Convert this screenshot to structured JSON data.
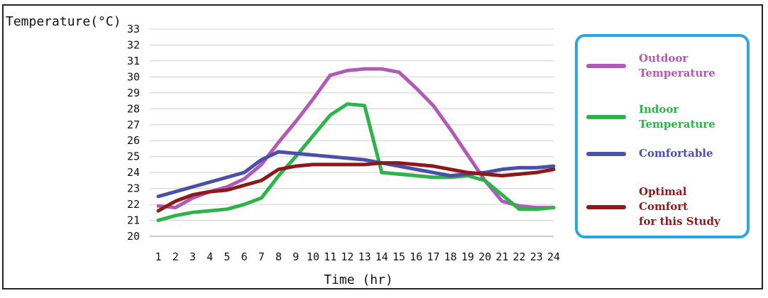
{
  "chart_data": {
    "type": "line",
    "title": "",
    "ylabel": "Temperature(°C)",
    "xlabel": "Time (hr)",
    "ylim": [
      20,
      33
    ],
    "yticks": [
      "20",
      "21",
      "22",
      "23",
      "24",
      "25",
      "26",
      "27",
      "28",
      "29",
      "30",
      "31",
      "32",
      "33"
    ],
    "x": [
      "1",
      "2",
      "3",
      "4",
      "5",
      "6",
      "7",
      "8",
      "9",
      "10",
      "11",
      "12",
      "13",
      "14",
      "15",
      "16",
      "17",
      "18",
      "19",
      "20",
      "21",
      "22",
      "23",
      "24"
    ],
    "grid": "horizontal",
    "legend_placement": "right",
    "series": [
      {
        "name": "Outdoor Temperature",
        "label_lines": [
          "Outdoor",
          "Temperature"
        ],
        "color": "#b05ab5",
        "values": [
          21.9,
          21.8,
          22.4,
          22.8,
          23.1,
          23.6,
          24.5,
          25.9,
          27.2,
          28.6,
          30.1,
          30.4,
          30.5,
          30.5,
          30.3,
          29.3,
          28.2,
          26.7,
          25.1,
          23.5,
          22.2,
          21.9,
          21.8,
          21.8
        ]
      },
      {
        "name": "Indoor Temperature",
        "label_lines": [
          "Indoor",
          "Temperature"
        ],
        "color": "#2cb34a",
        "values": [
          21.0,
          21.3,
          21.5,
          21.6,
          21.7,
          22.0,
          22.4,
          23.8,
          25.0,
          26.3,
          27.6,
          28.3,
          28.2,
          24.0,
          23.9,
          23.8,
          23.7,
          23.7,
          23.8,
          23.5,
          22.6,
          21.7,
          21.7,
          21.8
        ]
      },
      {
        "name": "Comfortable",
        "label_lines": [
          "Comfortable"
        ],
        "color": "#4a4fa8",
        "values": [
          22.5,
          22.8,
          23.1,
          23.4,
          23.7,
          24.0,
          24.8,
          25.3,
          25.2,
          25.1,
          25.0,
          24.9,
          24.8,
          24.6,
          24.4,
          24.2,
          24.0,
          23.8,
          23.9,
          24.0,
          24.2,
          24.3,
          24.3,
          24.4
        ]
      },
      {
        "name": "Optimal Comfort for this Study",
        "label_lines": [
          "Optimal Comfort",
          "for this Study"
        ],
        "color": "#8b1a1a",
        "values": [
          21.6,
          22.2,
          22.6,
          22.8,
          22.9,
          23.2,
          23.5,
          24.2,
          24.4,
          24.5,
          24.5,
          24.5,
          24.5,
          24.6,
          24.6,
          24.5,
          24.4,
          24.2,
          24.0,
          23.9,
          23.8,
          23.9,
          24.0,
          24.2
        ]
      }
    ]
  }
}
